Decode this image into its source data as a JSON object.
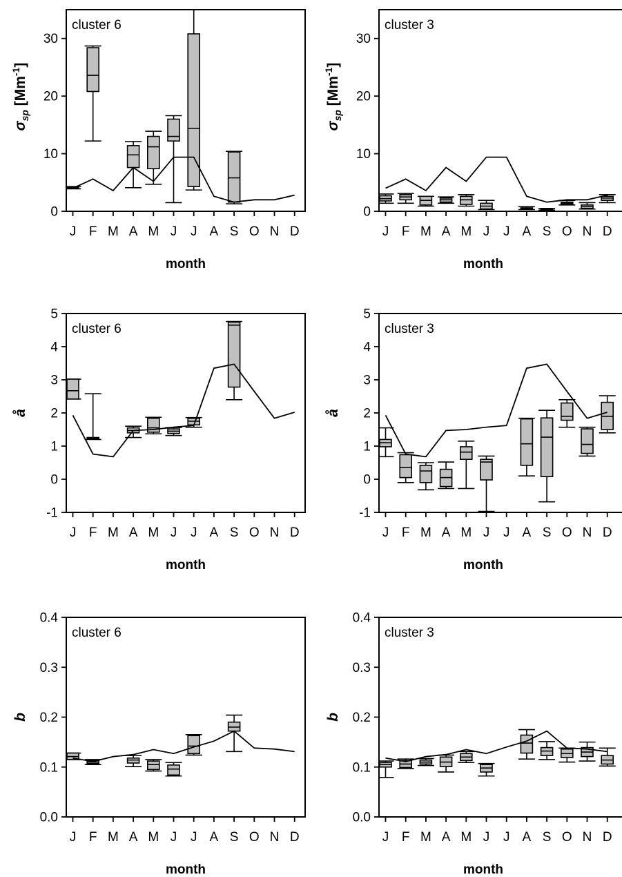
{
  "months": [
    "J",
    "F",
    "M",
    "A",
    "M",
    "J",
    "J",
    "A",
    "S",
    "O",
    "N",
    "D"
  ],
  "xlabel": "month",
  "colors": {
    "box_fill": "#c0c0c0",
    "line": "#000000",
    "axis": "#000000"
  },
  "chart_data": [
    {
      "id": "sigma-c6",
      "type": "box",
      "panel_label": "cluster 6",
      "ylabel_main": "σ",
      "ylabel_sub": "sp",
      "ylabel_unit_open": " [Mm",
      "ylabel_unit_sup": "-1",
      "ylabel_unit_close": "]",
      "ylim": [
        0,
        35
      ],
      "yticks": [
        0,
        10,
        20,
        30
      ],
      "ytick_labels": [
        "0",
        "10",
        "20",
        "30"
      ],
      "mean_line": [
        4.0,
        5.6,
        3.6,
        7.6,
        5.2,
        9.4,
        9.4,
        2.6,
        1.6,
        2.0,
        2.0,
        2.8
      ],
      "boxes": [
        {
          "month": 0,
          "whislo": 3.9,
          "q1": 4.0,
          "med": 4.1,
          "q3": 4.2,
          "whishi": 4.3
        },
        {
          "month": 1,
          "whislo": 12.2,
          "q1": 20.8,
          "med": 23.6,
          "q3": 28.4,
          "whishi": 28.7
        },
        {
          "month": 3,
          "whislo": 4.1,
          "q1": 7.6,
          "med": 9.8,
          "q3": 11.4,
          "whishi": 12.1
        },
        {
          "month": 4,
          "whislo": 4.7,
          "q1": 7.4,
          "med": 11.2,
          "q3": 13.0,
          "whishi": 13.9
        },
        {
          "month": 5,
          "whislo": 1.5,
          "q1": 12.2,
          "med": 13.0,
          "q3": 16.0,
          "whishi": 16.6
        },
        {
          "month": 6,
          "whislo": 3.7,
          "q1": 4.3,
          "med": 14.4,
          "q3": 30.8,
          "whishi": 35.0
        },
        {
          "month": 8,
          "whislo": 1.3,
          "q1": 1.6,
          "med": 5.8,
          "q3": 10.3,
          "whishi": 10.4
        }
      ]
    },
    {
      "id": "sigma-c3",
      "type": "box",
      "panel_label": "cluster 3",
      "ylabel_main": "σ",
      "ylabel_sub": "sp",
      "ylabel_unit_open": " [Mm",
      "ylabel_unit_sup": "-1",
      "ylabel_unit_close": "]",
      "ylim": [
        0,
        35
      ],
      "yticks": [
        0,
        10,
        20,
        30
      ],
      "ytick_labels": [
        "0",
        "10",
        "20",
        "30"
      ],
      "mean_line": [
        4.0,
        5.6,
        3.6,
        7.6,
        5.2,
        9.4,
        9.4,
        2.6,
        1.6,
        2.0,
        2.0,
        2.8
      ],
      "boxes": [
        {
          "month": 0,
          "whislo": 1.4,
          "q1": 1.8,
          "med": 2.2,
          "q3": 2.7,
          "whishi": 3.0
        },
        {
          "month": 1,
          "whislo": 1.4,
          "q1": 2.0,
          "med": 2.5,
          "q3": 2.9,
          "whishi": 3.1
        },
        {
          "month": 2,
          "whislo": 0.9,
          "q1": 1.1,
          "med": 1.9,
          "q3": 2.6,
          "whishi": 2.6
        },
        {
          "month": 3,
          "whislo": 1.4,
          "q1": 1.6,
          "med": 2.0,
          "q3": 2.3,
          "whishi": 2.5
        },
        {
          "month": 4,
          "whislo": 0.9,
          "q1": 1.2,
          "med": 2.0,
          "q3": 2.6,
          "whishi": 2.9
        },
        {
          "month": 5,
          "whislo": 0.3,
          "q1": 0.4,
          "med": 0.9,
          "q3": 1.4,
          "whishi": 1.9
        },
        {
          "month": 7,
          "whislo": 0.3,
          "q1": 0.4,
          "med": 0.5,
          "q3": 0.6,
          "whishi": 0.8
        },
        {
          "month": 8,
          "whislo": 0.2,
          "q1": 0.2,
          "med": 0.3,
          "q3": 0.4,
          "whishi": 0.5
        },
        {
          "month": 9,
          "whislo": 1.1,
          "q1": 1.2,
          "med": 1.4,
          "q3": 1.6,
          "whishi": 1.9
        },
        {
          "month": 10,
          "whislo": 0.4,
          "q1": 0.5,
          "med": 0.8,
          "q3": 1.1,
          "whishi": 1.5
        },
        {
          "month": 11,
          "whislo": 1.5,
          "q1": 1.9,
          "med": 2.3,
          "q3": 2.6,
          "whishi": 2.9
        }
      ]
    },
    {
      "id": "angstrom-c6",
      "type": "box",
      "panel_label": "cluster 6",
      "ylabel_main": "å",
      "ylim": [
        -1,
        5
      ],
      "yticks": [
        -1,
        0,
        1,
        2,
        3,
        4,
        5
      ],
      "ytick_labels": [
        "-1",
        "0",
        "1",
        "2",
        "3",
        "4",
        "5"
      ],
      "mean_line": [
        1.93,
        0.76,
        0.68,
        1.47,
        1.5,
        1.57,
        1.62,
        3.35,
        3.47,
        2.65,
        1.84,
        2.02
      ],
      "boxes": [
        {
          "month": 0,
          "whislo": 2.42,
          "q1": 2.42,
          "med": 2.67,
          "q3": 3.02,
          "whishi": 3.02
        },
        {
          "month": 1,
          "whislo": 1.2,
          "q1": 1.22,
          "med": 1.24,
          "q3": 1.26,
          "whishi": 2.58
        },
        {
          "month": 3,
          "whislo": 1.26,
          "q1": 1.4,
          "med": 1.47,
          "q3": 1.55,
          "whishi": 1.6
        },
        {
          "month": 4,
          "whislo": 1.37,
          "q1": 1.42,
          "med": 1.55,
          "q3": 1.84,
          "whishi": 1.87
        },
        {
          "month": 5,
          "whislo": 1.32,
          "q1": 1.38,
          "med": 1.45,
          "q3": 1.52,
          "whishi": 1.56
        },
        {
          "month": 6,
          "whislo": 1.57,
          "q1": 1.64,
          "med": 1.75,
          "q3": 1.84,
          "whishi": 1.86
        },
        {
          "month": 8,
          "whislo": 2.4,
          "q1": 2.78,
          "med": 4.65,
          "q3": 4.74,
          "whishi": 4.76
        }
      ]
    },
    {
      "id": "angstrom-c3",
      "type": "box",
      "panel_label": "cluster 3",
      "ylabel_main": "å",
      "ylim": [
        -1,
        5
      ],
      "yticks": [
        -1,
        0,
        1,
        2,
        3,
        4,
        5
      ],
      "ytick_labels": [
        "-1",
        "0",
        "1",
        "2",
        "3",
        "4",
        "5"
      ],
      "mean_line": [
        1.93,
        0.76,
        0.68,
        1.47,
        1.5,
        1.57,
        1.62,
        3.35,
        3.47,
        2.65,
        1.84,
        2.02
      ],
      "boxes": [
        {
          "month": 0,
          "whislo": 0.68,
          "q1": 0.98,
          "med": 1.1,
          "q3": 1.2,
          "whishi": 1.55
        },
        {
          "month": 1,
          "whislo": -0.1,
          "q1": 0.05,
          "med": 0.35,
          "q3": 0.74,
          "whishi": 0.8
        },
        {
          "month": 2,
          "whislo": -0.32,
          "q1": -0.1,
          "med": 0.25,
          "q3": 0.42,
          "whishi": 0.5
        },
        {
          "month": 3,
          "whislo": -0.28,
          "q1": -0.22,
          "med": 0.05,
          "q3": 0.3,
          "whishi": 0.52
        },
        {
          "month": 4,
          "whislo": -0.28,
          "q1": 0.6,
          "med": 0.82,
          "q3": 0.98,
          "whishi": 1.15
        },
        {
          "month": 5,
          "whislo": -0.97,
          "q1": -0.02,
          "med": 0.52,
          "q3": 0.6,
          "whishi": 0.7
        },
        {
          "month": 7,
          "whislo": 0.1,
          "q1": 0.42,
          "med": 1.07,
          "q3": 1.82,
          "whishi": 1.84
        },
        {
          "month": 8,
          "whislo": -0.68,
          "q1": 0.08,
          "med": 1.27,
          "q3": 1.85,
          "whishi": 2.08
        },
        {
          "month": 9,
          "whislo": 1.57,
          "q1": 1.78,
          "med": 1.9,
          "q3": 2.3,
          "whishi": 2.4
        },
        {
          "month": 10,
          "whislo": 0.7,
          "q1": 0.78,
          "med": 1.05,
          "q3": 1.52,
          "whishi": 1.57
        },
        {
          "month": 11,
          "whislo": 1.4,
          "q1": 1.5,
          "med": 1.9,
          "q3": 2.32,
          "whishi": 2.52
        }
      ]
    },
    {
      "id": "b-c6",
      "type": "box",
      "panel_label": "cluster 6",
      "ylabel_main": "b",
      "ylim": [
        0,
        0.4
      ],
      "yticks": [
        0,
        0.1,
        0.2,
        0.3,
        0.4
      ],
      "ytick_labels": [
        "0.0",
        "0.1",
        "0.2",
        "0.3",
        "0.4"
      ],
      "mean_line": [
        0.118,
        0.111,
        0.121,
        0.125,
        0.135,
        0.127,
        0.14,
        0.152,
        0.172,
        0.138,
        0.136,
        0.131
      ],
      "boxes": [
        {
          "month": 0,
          "whislo": 0.115,
          "q1": 0.115,
          "med": 0.121,
          "q3": 0.128,
          "whishi": 0.128
        },
        {
          "month": 1,
          "whislo": 0.105,
          "q1": 0.107,
          "med": 0.11,
          "q3": 0.113,
          "whishi": 0.115
        },
        {
          "month": 3,
          "whislo": 0.101,
          "q1": 0.108,
          "med": 0.114,
          "q3": 0.118,
          "whishi": 0.123
        },
        {
          "month": 4,
          "whislo": 0.092,
          "q1": 0.095,
          "med": 0.105,
          "q3": 0.112,
          "whishi": 0.115
        },
        {
          "month": 5,
          "whislo": 0.082,
          "q1": 0.084,
          "med": 0.096,
          "q3": 0.104,
          "whishi": 0.109
        },
        {
          "month": 6,
          "whislo": 0.124,
          "q1": 0.127,
          "med": 0.142,
          "q3": 0.163,
          "whishi": 0.165
        },
        {
          "month": 8,
          "whislo": 0.131,
          "q1": 0.172,
          "med": 0.18,
          "q3": 0.19,
          "whishi": 0.204
        }
      ]
    },
    {
      "id": "b-c3",
      "type": "box",
      "panel_label": "cluster 3",
      "ylabel_main": "b",
      "ylim": [
        0,
        0.4
      ],
      "yticks": [
        0,
        0.1,
        0.2,
        0.3,
        0.4
      ],
      "ytick_labels": [
        "0.0",
        "0.1",
        "0.2",
        "0.3",
        "0.4"
      ],
      "mean_line": [
        0.118,
        0.111,
        0.121,
        0.125,
        0.135,
        0.127,
        0.14,
        0.152,
        0.172,
        0.138,
        0.136,
        0.131
      ],
      "boxes": [
        {
          "month": 0,
          "whislo": 0.079,
          "q1": 0.1,
          "med": 0.105,
          "q3": 0.109,
          "whishi": 0.112
        },
        {
          "month": 1,
          "whislo": 0.097,
          "q1": 0.099,
          "med": 0.106,
          "q3": 0.113,
          "whishi": 0.116
        },
        {
          "month": 2,
          "whislo": 0.103,
          "q1": 0.106,
          "med": 0.11,
          "q3": 0.114,
          "whishi": 0.117
        },
        {
          "month": 3,
          "whislo": 0.09,
          "q1": 0.101,
          "med": 0.11,
          "q3": 0.12,
          "whishi": 0.124
        },
        {
          "month": 4,
          "whislo": 0.109,
          "q1": 0.113,
          "med": 0.12,
          "q3": 0.127,
          "whishi": 0.131
        },
        {
          "month": 5,
          "whislo": 0.082,
          "q1": 0.09,
          "med": 0.098,
          "q3": 0.105,
          "whishi": 0.107
        },
        {
          "month": 7,
          "whislo": 0.116,
          "q1": 0.128,
          "med": 0.148,
          "q3": 0.164,
          "whishi": 0.175
        },
        {
          "month": 8,
          "whislo": 0.115,
          "q1": 0.123,
          "med": 0.132,
          "q3": 0.139,
          "whishi": 0.151
        },
        {
          "month": 9,
          "whislo": 0.11,
          "q1": 0.119,
          "med": 0.127,
          "q3": 0.136,
          "whishi": 0.138
        },
        {
          "month": 10,
          "whislo": 0.112,
          "q1": 0.121,
          "med": 0.13,
          "q3": 0.139,
          "whishi": 0.15
        },
        {
          "month": 11,
          "whislo": 0.102,
          "q1": 0.106,
          "med": 0.114,
          "q3": 0.123,
          "whishi": 0.138
        }
      ]
    }
  ]
}
